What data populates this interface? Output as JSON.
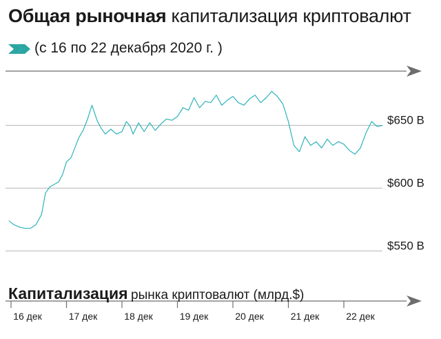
{
  "title_bold": "Общая рыночная",
  "title_light": "капитализация криптовалют",
  "subtitle": "(с 16 по 22 декабря 2020 г. )",
  "bottom_title_bold": "Капитализация",
  "bottom_title_light": "рынка криптовалют (млрд.$)",
  "colors": {
    "line": "#2bb3b8",
    "grid": "#b8b8b8",
    "accent_arrow": "#2aa6a3",
    "axis_arrow": "#6d6d6d"
  },
  "chart_data": {
    "type": "line",
    "title": "Общая рыночная капитализация криптовалют",
    "ylabel": "Капитализация рынка криптовалют (млрд.$)",
    "xlabel": "",
    "ylim": [
      550,
      700
    ],
    "xlim": [
      0,
      6.85
    ],
    "yticks": [
      {
        "value": 650,
        "label": "$650 B"
      },
      {
        "value": 600,
        "label": "$600 B"
      },
      {
        "value": 550,
        "label": "$550 B"
      }
    ],
    "xticks": [
      {
        "value": 0,
        "label": "16 дек"
      },
      {
        "value": 1,
        "label": "17 дек"
      },
      {
        "value": 2,
        "label": "18 дек"
      },
      {
        "value": 3,
        "label": "19 дек"
      },
      {
        "value": 4,
        "label": "20 дек"
      },
      {
        "value": 5,
        "label": "21 дек"
      },
      {
        "value": 6,
        "label": "22 дек"
      }
    ],
    "grid": "horizontal",
    "series": [
      {
        "x": [
          -0.04,
          0.05,
          0.15,
          0.25,
          0.35,
          0.45,
          0.55,
          0.62,
          0.7,
          0.78,
          0.86,
          0.93,
          1.0,
          1.08,
          1.15,
          1.22,
          1.3,
          1.38,
          1.46,
          1.55,
          1.62,
          1.7,
          1.8,
          1.9,
          2.0,
          2.08,
          2.15,
          2.2,
          2.3,
          2.4,
          2.5,
          2.6,
          2.7,
          2.8,
          2.9,
          3.0,
          3.1,
          3.2,
          3.3,
          3.4,
          3.5,
          3.6,
          3.7,
          3.8,
          3.9,
          4.0,
          4.1,
          4.2,
          4.3,
          4.4,
          4.5,
          4.6,
          4.7,
          4.8,
          4.9,
          5.0,
          5.1,
          5.2,
          5.3,
          5.4,
          5.5,
          5.6,
          5.7,
          5.8,
          5.9,
          6.0,
          6.1,
          6.2,
          6.3,
          6.4,
          6.5,
          6.6,
          6.7
        ],
        "values": [
          574,
          571,
          569,
          568,
          568,
          571,
          579,
          596,
          601,
          603,
          605,
          611,
          621,
          624,
          632,
          640,
          646,
          655,
          666,
          654,
          648,
          643,
          647,
          643,
          645,
          653,
          649,
          643,
          652,
          645,
          652,
          646,
          651,
          655,
          654,
          657,
          664,
          662,
          672,
          664,
          669,
          668,
          674,
          666,
          670,
          673,
          668,
          666,
          671,
          674,
          668,
          672,
          677,
          673,
          667,
          653,
          634,
          629,
          641,
          634,
          637,
          632,
          639,
          634,
          637,
          635,
          630,
          627,
          632,
          644,
          653,
          649,
          650
        ]
      }
    ]
  }
}
